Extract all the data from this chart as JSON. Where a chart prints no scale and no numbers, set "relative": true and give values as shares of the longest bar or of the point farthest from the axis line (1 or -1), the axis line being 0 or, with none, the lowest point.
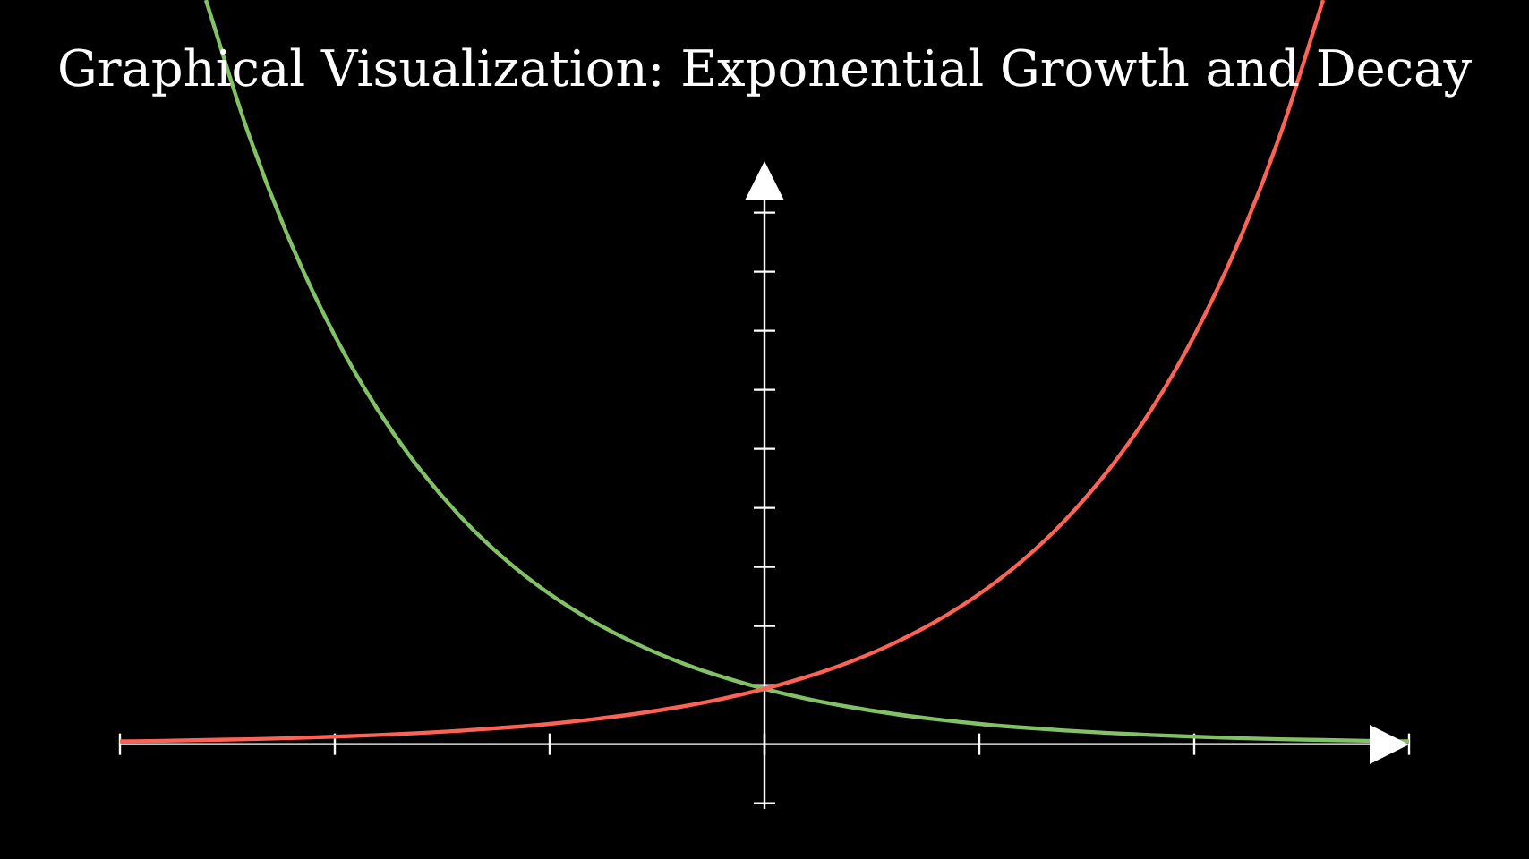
{
  "chart_data": {
    "type": "line",
    "title": "Graphical Visualization: Exponential Growth and Decay",
    "categories": [
      null,
      null,
      null,
      null,
      null,
      null,
      null,
      null,
      null,
      null,
      null,
      null,
      null,
      null,
      null,
      null,
      null,
      null,
      null,
      null,
      null,
      null,
      null,
      null,
      null,
      null,
      null,
      null,
      null,
      null,
      null
    ],
    "relative": true,
    "legend": false,
    "grid": false,
    "tick_labels": false,
    "marker": "none",
    "line_style": "solid",
    "series": [
      {
        "color": "#fc6255",
        "values": [
          0.0037,
          0.0045,
          0.0055,
          0.0067,
          0.0082,
          0.0101,
          0.0123,
          0.015,
          0.0183,
          0.0224,
          0.0273,
          0.0334,
          0.0408,
          0.0498,
          0.0608,
          0.0743,
          0.0907,
          0.1108,
          0.1353,
          0.1653,
          0.2019,
          0.2466,
          0.3012,
          0.3679,
          0.4493,
          0.5488,
          0.6703,
          0.8187,
          1,
          null,
          null
        ]
      },
      {
        "color": "#83c167",
        "values": [
          null,
          null,
          1,
          0.8187,
          0.6703,
          0.5488,
          0.4493,
          0.3679,
          0.3012,
          0.2466,
          0.2019,
          0.1653,
          0.1353,
          0.1108,
          0.0907,
          0.0743,
          0.0608,
          0.0498,
          0.0408,
          0.0334,
          0.0273,
          0.0224,
          0.0183,
          0.015,
          0.0123,
          0.0101,
          0.0082,
          0.0067,
          0.0055,
          0.0045,
          0.0037
        ]
      }
    ]
  }
}
